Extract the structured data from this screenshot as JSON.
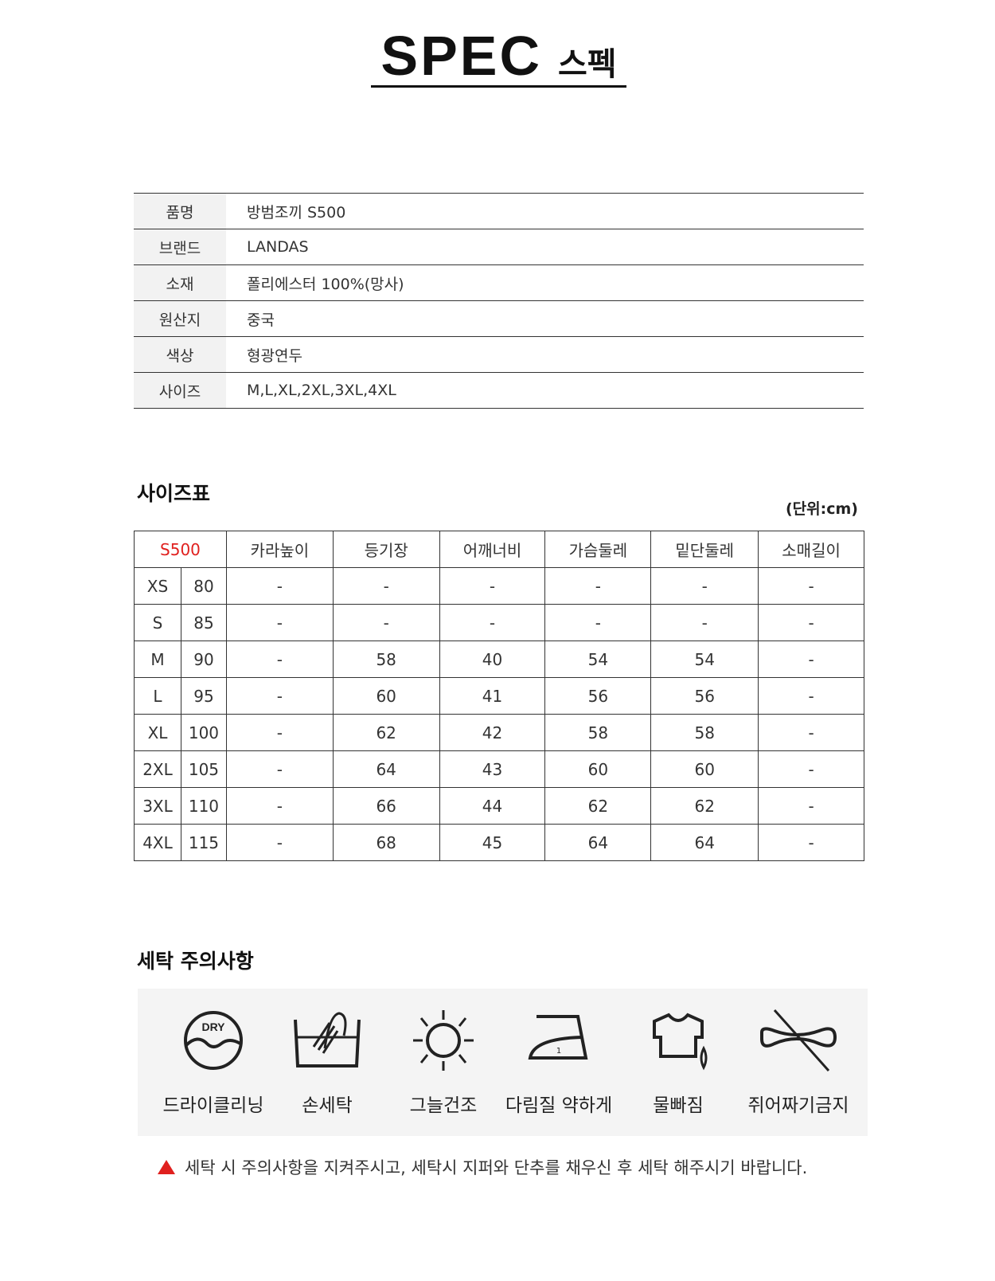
{
  "header": {
    "title_en": "SPEC",
    "title_ko": "스펙"
  },
  "spec": [
    {
      "label": "품명",
      "value": "방범조끼 S500"
    },
    {
      "label": "브랜드",
      "value": "LANDAS"
    },
    {
      "label": "소재",
      "value": "폴리에스터 100%(망사)"
    },
    {
      "label": "원산지",
      "value": "중국"
    },
    {
      "label": "색상",
      "value": "형광연두"
    },
    {
      "label": "사이즈",
      "value": "M,L,XL,2XL,3XL,4XL"
    }
  ],
  "size_chart": {
    "title": "사이즈표",
    "unit": "(단위:cm)",
    "model": "S500",
    "model_color": "#e0201e",
    "columns": [
      "카라높이",
      "등기장",
      "어깨너비",
      "가슴둘레",
      "밑단둘레",
      "소매길이"
    ],
    "rows": [
      {
        "size": "XS",
        "num": "80",
        "values": [
          "-",
          "-",
          "-",
          "-",
          "-",
          "-"
        ]
      },
      {
        "size": "S",
        "num": "85",
        "values": [
          "-",
          "-",
          "-",
          "-",
          "-",
          "-"
        ]
      },
      {
        "size": "M",
        "num": "90",
        "values": [
          "-",
          "58",
          "40",
          "54",
          "54",
          "-"
        ]
      },
      {
        "size": "L",
        "num": "95",
        "values": [
          "-",
          "60",
          "41",
          "56",
          "56",
          "-"
        ]
      },
      {
        "size": "XL",
        "num": "100",
        "values": [
          "-",
          "62",
          "42",
          "58",
          "58",
          "-"
        ]
      },
      {
        "size": "2XL",
        "num": "105",
        "values": [
          "-",
          "64",
          "43",
          "60",
          "60",
          "-"
        ]
      },
      {
        "size": "3XL",
        "num": "110",
        "values": [
          "-",
          "66",
          "44",
          "62",
          "62",
          "-"
        ]
      },
      {
        "size": "4XL",
        "num": "115",
        "values": [
          "-",
          "68",
          "45",
          "64",
          "64",
          "-"
        ]
      }
    ]
  },
  "care": {
    "title": "세탁 주의사항",
    "items": [
      {
        "icon": "dry-clean-icon",
        "label": "드라이클리닝",
        "icon_text": "DRY"
      },
      {
        "icon": "hand-wash-icon",
        "label": "손세탁"
      },
      {
        "icon": "shade-dry-icon",
        "label": "그늘건조"
      },
      {
        "icon": "iron-low-icon",
        "label": "다림질 약하게",
        "icon_text": "1"
      },
      {
        "icon": "color-bleed-icon",
        "label": "물빠짐"
      },
      {
        "icon": "no-wring-icon",
        "label": "쥐어짜기금지"
      }
    ],
    "notice": "세탁 시 주의사항을 지켜주시고, 세탁시 지퍼와 단추를 채우신 후 세탁 해주시기 바랍니다.",
    "notice_color": "#e0201e"
  }
}
